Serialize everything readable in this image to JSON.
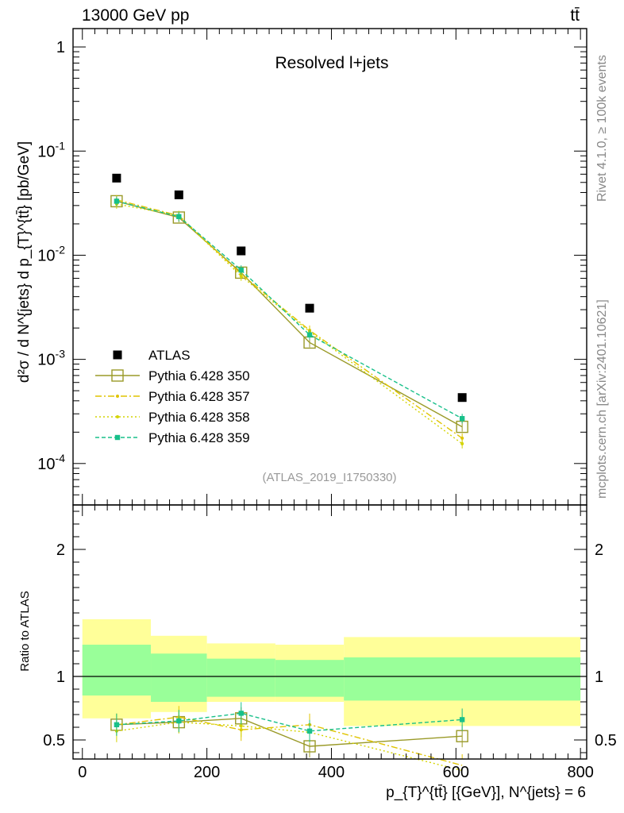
{
  "header": {
    "left": "13000 GeV pp",
    "right": "tt̄"
  },
  "side_labels": {
    "rivet": "Rivet 4.1.0, ≥ 100k events",
    "mcplots": "mcplots.cern.ch [arXiv:2401.10621]"
  },
  "colors": {
    "atlas": "#000000",
    "p350": "#9a9a28",
    "p357": "#e0c400",
    "p358": "#d4d400",
    "p359": "#18c08a",
    "band_inner": "#99ff99",
    "band_outer": "#ffff99"
  },
  "chart_data": [
    {
      "type": "scatter",
      "panel": "main",
      "title": "Resolved l+jets",
      "analysis_tag": "(ATLAS_2019_I1750330)",
      "ylabel": "d²σ / d N^{jets} d p_{T}^{tt̄} [pb/GeV]",
      "yscale": "log",
      "ylim": [
        4e-05,
        1.5
      ],
      "xlim": [
        -15,
        810
      ],
      "ytick_labels": [
        "1",
        "10^-1",
        "10^-2",
        "10^-3",
        "10^-4"
      ],
      "x": [
        55,
        155,
        255,
        365,
        610
      ],
      "xerr": [
        [
          0,
          110
        ],
        [
          110,
          200
        ],
        [
          200,
          310
        ],
        [
          310,
          420
        ],
        [
          420,
          800
        ]
      ],
      "legend": [
        "ATLAS",
        "Pythia 6.428 350",
        "Pythia 6.428 357",
        "Pythia 6.428 358",
        "Pythia 6.428 359"
      ],
      "series": [
        {
          "name": "ATLAS",
          "values": [
            0.055,
            0.038,
            0.011,
            0.0031,
            0.00043
          ]
        },
        {
          "name": "Pythia 6.428 350",
          "values": [
            0.033,
            0.023,
            0.0068,
            0.00145,
            0.000225
          ]
        },
        {
          "name": "Pythia 6.428 357",
          "values": [
            0.034,
            0.024,
            0.0066,
            0.0019,
            0.000175
          ]
        },
        {
          "name": "Pythia 6.428 358",
          "values": [
            0.031,
            0.024,
            0.0063,
            0.00185,
            0.000155
          ]
        },
        {
          "name": "Pythia 6.428 359",
          "values": [
            0.033,
            0.0235,
            0.0072,
            0.00172,
            0.00027
          ]
        }
      ]
    },
    {
      "type": "line",
      "panel": "ratio",
      "ylabel": "Ratio to ATLAS",
      "xlabel": "p_{T}^{tt̄} [{GeV}], N^{jets} = 6",
      "ylim": [
        0.35,
        2.35
      ],
      "xlim": [
        -15,
        810
      ],
      "yticks": [
        0.5,
        1,
        2
      ],
      "ytick_labels": [
        "0.5",
        "1",
        "2"
      ],
      "xticks": [
        0,
        200,
        400,
        600,
        800
      ],
      "xtick_labels": [
        "0",
        "200",
        "400",
        "600",
        "800"
      ],
      "x": [
        55,
        155,
        255,
        365,
        610
      ],
      "bands": {
        "edges": [
          [
            0,
            110
          ],
          [
            110,
            200
          ],
          [
            200,
            310
          ],
          [
            310,
            420
          ],
          [
            420,
            800
          ]
        ],
        "inner": [
          [
            0.85,
            1.25
          ],
          [
            0.8,
            1.18
          ],
          [
            0.84,
            1.14
          ],
          [
            0.84,
            1.13
          ],
          [
            0.81,
            1.15
          ]
        ],
        "outer": [
          [
            0.67,
            1.45
          ],
          [
            0.72,
            1.32
          ],
          [
            0.8,
            1.26
          ],
          [
            0.8,
            1.25
          ],
          [
            0.61,
            1.31
          ]
        ]
      },
      "series": [
        {
          "name": "Pythia 6.428 350",
          "values": [
            0.62,
            0.64,
            0.67,
            0.45,
            0.53
          ]
        },
        {
          "name": "Pythia 6.428 357",
          "values": [
            0.62,
            0.68,
            0.58,
            0.62,
            0.3
          ]
        },
        {
          "name": "Pythia 6.428 358",
          "values": [
            0.57,
            0.64,
            0.61,
            0.56,
            0.26
          ]
        },
        {
          "name": "Pythia 6.428 359",
          "values": [
            0.62,
            0.65,
            0.71,
            0.57,
            0.66
          ]
        }
      ]
    }
  ]
}
